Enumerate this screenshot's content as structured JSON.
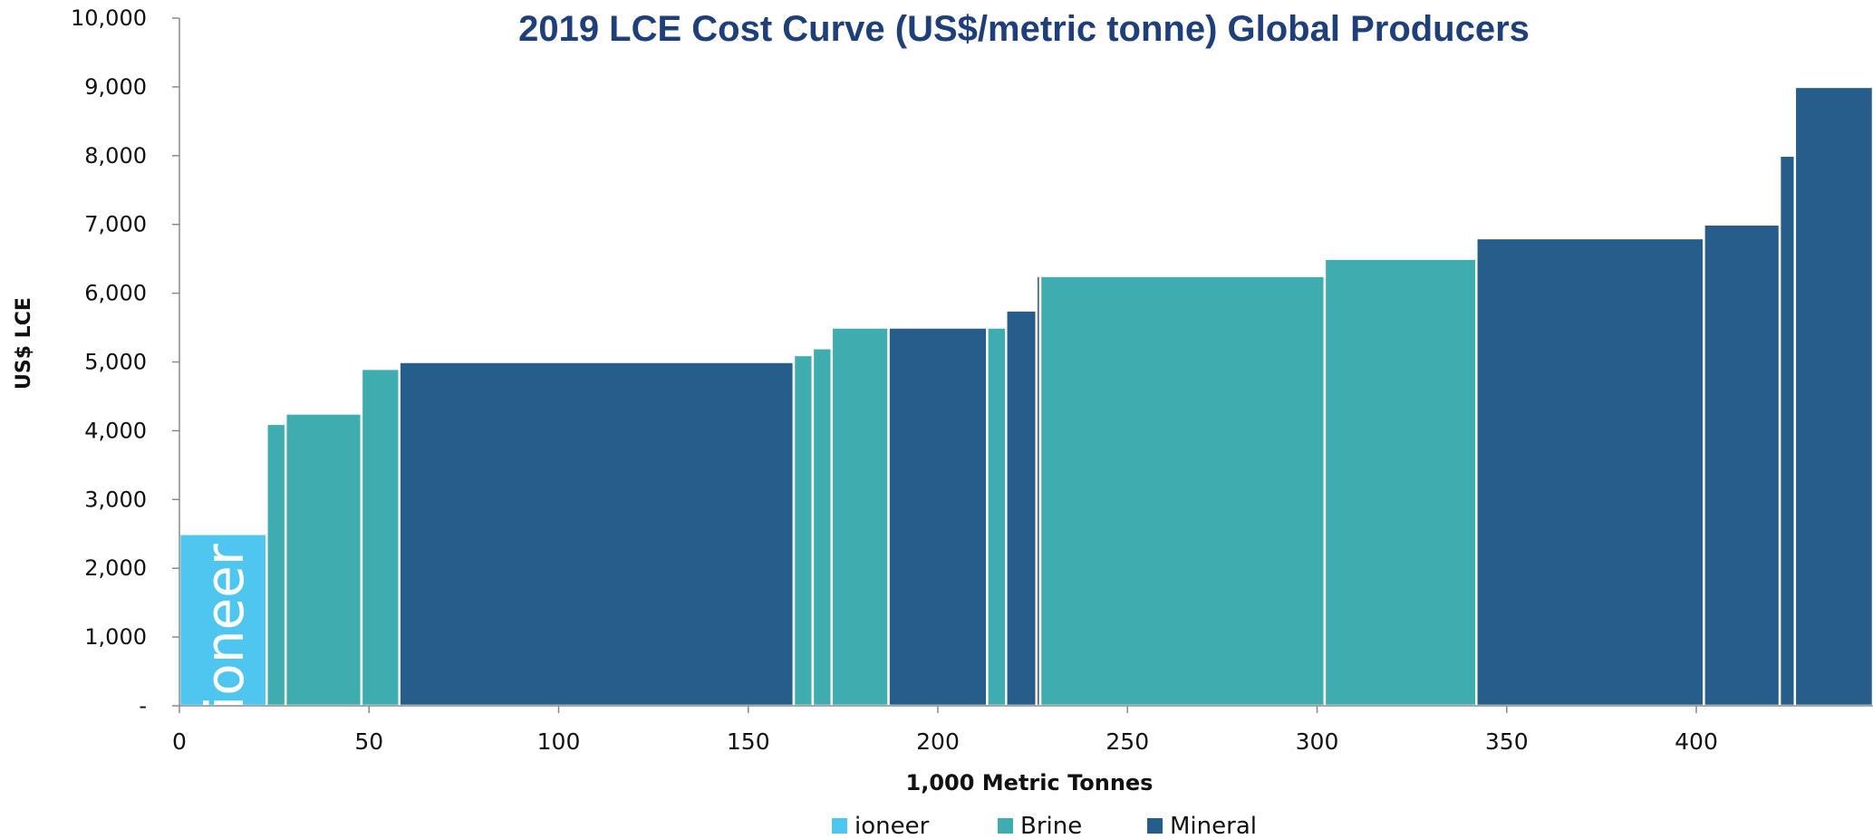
{
  "chart_data": {
    "type": "bar",
    "subtype": "cost-curve-variable-width",
    "title": "2019 LCE Cost Curve (US$/metric tonne) Global Producers",
    "xlabel": "1,000 Metric Tonnes",
    "ylabel": "US$ LCE",
    "xlim": [
      0,
      447
    ],
    "ylim": [
      0,
      10000
    ],
    "x_ticks": [
      {
        "value": 0,
        "label": "0"
      },
      {
        "value": 50,
        "label": "50"
      },
      {
        "value": 100,
        "label": "100"
      },
      {
        "value": 150,
        "label": "150"
      },
      {
        "value": 200,
        "label": "200"
      },
      {
        "value": 250,
        "label": "250"
      },
      {
        "value": 300,
        "label": "300"
      },
      {
        "value": 350,
        "label": "350"
      },
      {
        "value": 400,
        "label": "400"
      }
    ],
    "y_ticks": [
      {
        "value": 0,
        "label": "-"
      },
      {
        "value": 1000,
        "label": "1,000"
      },
      {
        "value": 2000,
        "label": "2,000"
      },
      {
        "value": 3000,
        "label": "3,000"
      },
      {
        "value": 4000,
        "label": "4,000"
      },
      {
        "value": 5000,
        "label": "5,000"
      },
      {
        "value": 6000,
        "label": "6,000"
      },
      {
        "value": 7000,
        "label": "7,000"
      },
      {
        "value": 8000,
        "label": "8,000"
      },
      {
        "value": 9000,
        "label": "9,000"
      },
      {
        "value": 10000,
        "label": "10,000"
      }
    ],
    "grid": false,
    "legend_position": "bottom",
    "series_colors": {
      "ioneer": "#4fc6f0",
      "Brine": "#3fadb0",
      "Mineral": "#265d8a"
    },
    "legend": [
      {
        "name": "ioneer",
        "color": "#4fc6f0"
      },
      {
        "name": "Brine",
        "color": "#3fadb0"
      },
      {
        "name": "Mineral",
        "color": "#265d8a"
      }
    ],
    "bars": [
      {
        "type": "ioneer",
        "x0": 0,
        "x1": 23,
        "cost": 2500,
        "label": "ioneer"
      },
      {
        "type": "Brine",
        "x0": 23,
        "x1": 28,
        "cost": 4100
      },
      {
        "type": "Brine",
        "x0": 28,
        "x1": 48,
        "cost": 4250
      },
      {
        "type": "Brine",
        "x0": 48,
        "x1": 58,
        "cost": 4900
      },
      {
        "type": "Mineral",
        "x0": 58,
        "x1": 162,
        "cost": 5000
      },
      {
        "type": "Brine",
        "x0": 162,
        "x1": 167,
        "cost": 5100
      },
      {
        "type": "Brine",
        "x0": 167,
        "x1": 172,
        "cost": 5200
      },
      {
        "type": "Brine",
        "x0": 172,
        "x1": 187,
        "cost": 5500
      },
      {
        "type": "Mineral",
        "x0": 187,
        "x1": 213,
        "cost": 5500
      },
      {
        "type": "Brine",
        "x0": 213,
        "x1": 218,
        "cost": 5500
      },
      {
        "type": "Mineral",
        "x0": 218,
        "x1": 226,
        "cost": 5750
      },
      {
        "type": "Mineral",
        "x0": 226,
        "x1": 227,
        "cost": 6250
      },
      {
        "type": "Brine",
        "x0": 227,
        "x1": 302,
        "cost": 6250
      },
      {
        "type": "Brine",
        "x0": 302,
        "x1": 342,
        "cost": 6500
      },
      {
        "type": "Mineral",
        "x0": 342,
        "x1": 402,
        "cost": 6800
      },
      {
        "type": "Mineral",
        "x0": 402,
        "x1": 422,
        "cost": 7000
      },
      {
        "type": "Mineral",
        "x0": 422,
        "x1": 426,
        "cost": 8000
      },
      {
        "type": "Mineral",
        "x0": 426,
        "x1": 447,
        "cost": 9000
      }
    ]
  }
}
